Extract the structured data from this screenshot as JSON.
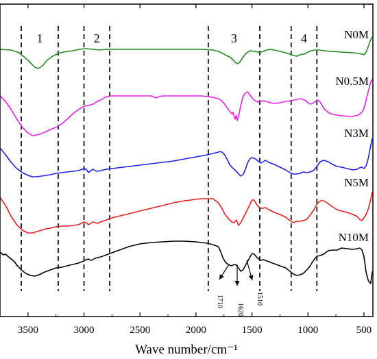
{
  "chart_data": {
    "type": "line",
    "xlabel": "Wave number/cm⁻¹",
    "ylabel": "",
    "xlim": [
      3750,
      420
    ],
    "x_reversed": true,
    "x_ticks": [
      3500,
      3000,
      2500,
      2000,
      1500,
      1000,
      500
    ],
    "x_tick_labels": [
      "3500",
      "3000",
      "2500",
      "2000",
      "1500",
      "1000",
      "500"
    ],
    "y_ticks_shown": false,
    "regions": [
      {
        "label": "1",
        "from": 3560,
        "to": 3230
      },
      {
        "label": "2",
        "from": 3000,
        "to": 2770
      },
      {
        "label": "3",
        "from": 1890,
        "to": 1430
      },
      {
        "label": "4",
        "from": 1150,
        "to": 920
      }
    ],
    "annotations": [
      {
        "label": "1710",
        "x": 1710
      },
      {
        "label": "1620",
        "x": 1620
      },
      {
        "label": "1510",
        "x": 1510
      }
    ],
    "series": [
      {
        "name": "N0M",
        "color": "#1e8c1e",
        "offset": 72,
        "x": [
          3750,
          3650,
          3580,
          3520,
          3470,
          3440,
          3410,
          3370,
          3330,
          3280,
          3230,
          3180,
          3100,
          3040,
          2980,
          2920,
          2860,
          2800,
          2700,
          2500,
          2300,
          2100,
          1950,
          1850,
          1800,
          1760,
          1730,
          1700,
          1670,
          1650,
          1630,
          1610,
          1590,
          1560,
          1530,
          1510,
          1480,
          1450,
          1420,
          1400,
          1370,
          1340,
          1300,
          1250,
          1200,
          1160,
          1130,
          1100,
          1070,
          1050,
          1030,
          1000,
          970,
          940,
          900,
          860,
          800,
          700,
          600,
          550,
          520,
          500,
          480,
          460,
          440,
          425
        ],
        "y": [
          0,
          -1,
          -5,
          -13,
          -21,
          -26,
          -28,
          -24,
          -16,
          -10,
          -6,
          -4,
          -2,
          0,
          1,
          0,
          -1,
          0,
          0,
          0,
          0,
          0,
          0,
          -1,
          -3,
          -6,
          -9,
          -11,
          -15,
          -19,
          -21,
          -19,
          -14,
          -7,
          -3,
          -2,
          -3,
          -4,
          -4,
          -3,
          -1,
          0,
          -1,
          -3,
          -5,
          -7,
          -9,
          -10,
          -8,
          -7,
          -7,
          -4,
          -2,
          -1,
          -1,
          -2,
          -3,
          -4,
          -5,
          -6,
          -7,
          -8,
          -4,
          5,
          14,
          18
        ]
      },
      {
        "name": "N0.5M",
        "color": "#e81ee8",
        "offset": 140,
        "x": [
          3750,
          3700,
          3650,
          3600,
          3550,
          3500,
          3460,
          3420,
          3380,
          3340,
          3300,
          3250,
          3200,
          3150,
          3100,
          3050,
          3000,
          2960,
          2920,
          2880,
          2850,
          2820,
          2800,
          2780,
          2760,
          2700,
          2600,
          2500,
          2400,
          2370,
          2350,
          2330,
          2300,
          2200,
          2100,
          2000,
          1950,
          1900,
          1850,
          1800,
          1780,
          1760,
          1740,
          1720,
          1700,
          1690,
          1680,
          1670,
          1660,
          1650,
          1640,
          1630,
          1620,
          1600,
          1580,
          1560,
          1540,
          1520,
          1500,
          1480,
          1460,
          1440,
          1400,
          1370,
          1340,
          1300,
          1250,
          1200,
          1150,
          1100,
          1060,
          1020,
          1000,
          980,
          960,
          940,
          920,
          900,
          880,
          860,
          820,
          780,
          700,
          600,
          550,
          520,
          500,
          480,
          460,
          440,
          425
        ],
        "y": [
          0,
          -8,
          -20,
          -34,
          -46,
          -54,
          -58,
          -57,
          -55,
          -52,
          -49,
          -46,
          -41,
          -34,
          -26,
          -20,
          -15,
          -14,
          -12,
          -8,
          -6,
          -3,
          -1,
          -1,
          0,
          0,
          0,
          0,
          0,
          -2,
          -3,
          -1,
          0,
          0,
          0,
          0,
          0,
          -1,
          -2,
          -4,
          -6,
          -9,
          -13,
          -18,
          -22,
          -24,
          -26,
          -24,
          -30,
          -34,
          -28,
          -36,
          -30,
          -14,
          -1,
          4,
          6,
          2,
          -3,
          -6,
          -8,
          -9,
          -7,
          -8,
          -10,
          -11,
          -10,
          -8,
          -7,
          -5,
          -4,
          -7,
          -10,
          -12,
          -11,
          -9,
          -6,
          -7,
          -12,
          -18,
          -24,
          -27,
          -29,
          -30,
          -28,
          -24,
          -18,
          -6,
          8,
          20,
          24
        ]
      },
      {
        "name": "N3M",
        "color": "#1e1ee6",
        "offset": 216,
        "x": [
          3750,
          3700,
          3650,
          3600,
          3550,
          3500,
          3460,
          3420,
          3380,
          3340,
          3300,
          3250,
          3200,
          3150,
          3100,
          3050,
          3000,
          2980,
          2960,
          2940,
          2920,
          2900,
          2880,
          2850,
          2800,
          2750,
          2700,
          2600,
          2500,
          2400,
          2300,
          2200,
          2100,
          2000,
          1900,
          1800,
          1780,
          1760,
          1740,
          1720,
          1700,
          1680,
          1660,
          1640,
          1620,
          1600,
          1580,
          1560,
          1540,
          1520,
          1500,
          1480,
          1460,
          1440,
          1420,
          1400,
          1380,
          1350,
          1300,
          1250,
          1200,
          1160,
          1130,
          1100,
          1070,
          1040,
          1010,
          980,
          950,
          920,
          890,
          860,
          820,
          780,
          740,
          700,
          650,
          600,
          560,
          540,
          520,
          500,
          480,
          460,
          440,
          425
        ],
        "y": [
          0,
          -10,
          -21,
          -30,
          -36,
          -40,
          -42,
          -42,
          -41,
          -40,
          -39,
          -37,
          -36,
          -35,
          -34,
          -33,
          -30,
          -31,
          -36,
          -33,
          -31,
          -33,
          -34,
          -33,
          -31,
          -30,
          -29,
          -27,
          -25,
          -23,
          -21,
          -19,
          -16,
          -13,
          -10,
          -6,
          -5,
          -7,
          -11,
          -17,
          -24,
          -28,
          -31,
          -34,
          -38,
          -41,
          -39,
          -32,
          -22,
          -16,
          -14,
          -15,
          -17,
          -20,
          -22,
          -20,
          -18,
          -21,
          -24,
          -28,
          -32,
          -36,
          -38,
          -38,
          -37,
          -35,
          -36,
          -35,
          -33,
          -27,
          -20,
          -18,
          -20,
          -24,
          -27,
          -28,
          -30,
          -32,
          -31,
          -29,
          -28,
          -30,
          -26,
          -14,
          3,
          14
        ]
      },
      {
        "name": "N5M",
        "color": "#e81e1e",
        "offset": 288,
        "x": [
          3750,
          3700,
          3650,
          3600,
          3550,
          3500,
          3460,
          3420,
          3380,
          3340,
          3300,
          3250,
          3200,
          3150,
          3100,
          3050,
          3000,
          2980,
          2960,
          2940,
          2920,
          2900,
          2880,
          2850,
          2800,
          2750,
          2700,
          2600,
          2500,
          2400,
          2300,
          2200,
          2100,
          2000,
          1950,
          1900,
          1850,
          1800,
          1780,
          1760,
          1740,
          1720,
          1700,
          1680,
          1660,
          1640,
          1620,
          1600,
          1580,
          1560,
          1540,
          1520,
          1500,
          1480,
          1460,
          1440,
          1420,
          1400,
          1380,
          1350,
          1300,
          1250,
          1200,
          1160,
          1130,
          1100,
          1070,
          1040,
          1010,
          980,
          950,
          920,
          890,
          860,
          820,
          780,
          740,
          700,
          650,
          600,
          560,
          540,
          520,
          500,
          480,
          460,
          440,
          425
        ],
        "y": [
          0,
          -12,
          -28,
          -40,
          -48,
          -52,
          -52,
          -50,
          -48,
          -46,
          -45,
          -43,
          -42,
          -42,
          -41,
          -40,
          -36,
          -37,
          -40,
          -38,
          -36,
          -37,
          -38,
          -36,
          -33,
          -30,
          -28,
          -24,
          -20,
          -16,
          -12,
          -8,
          -5,
          -3,
          -2,
          -2,
          -2,
          -8,
          -13,
          -19,
          -25,
          -29,
          -33,
          -36,
          -37,
          -33,
          -41,
          -37,
          -31,
          -24,
          -18,
          -11,
          -4,
          -4,
          -10,
          -14,
          -16,
          -16,
          -15,
          -18,
          -22,
          -25,
          -29,
          -34,
          -37,
          -35,
          -35,
          -34,
          -32,
          -26,
          -19,
          -10,
          -5,
          -5,
          -9,
          -14,
          -18,
          -20,
          -22,
          -25,
          -28,
          -32,
          -34,
          -30,
          -25,
          -16,
          -4,
          8
        ]
      },
      {
        "name": "N10M",
        "color": "#000000",
        "offset": 368,
        "x": [
          3750,
          3720,
          3700,
          3680,
          3650,
          3620,
          3600,
          3560,
          3520,
          3480,
          3440,
          3400,
          3350,
          3300,
          3250,
          3200,
          3150,
          3100,
          3050,
          3000,
          2980,
          2960,
          2940,
          2920,
          2900,
          2880,
          2850,
          2800,
          2750,
          2700,
          2600,
          2500,
          2400,
          2300,
          2200,
          2100,
          2000,
          1950,
          1900,
          1850,
          1800,
          1780,
          1760,
          1740,
          1720,
          1700,
          1680,
          1660,
          1640,
          1620,
          1600,
          1580,
          1560,
          1540,
          1520,
          1500,
          1480,
          1460,
          1440,
          1420,
          1400,
          1380,
          1350,
          1300,
          1250,
          1200,
          1160,
          1130,
          1100,
          1070,
          1040,
          1010,
          980,
          950,
          920,
          890,
          860,
          820,
          780,
          740,
          700,
          650,
          600,
          560,
          540,
          520,
          500,
          480,
          460,
          440,
          425
        ],
        "y": [
          0,
          -4,
          -3,
          -6,
          -10,
          -14,
          -19,
          -26,
          -31,
          -34,
          -35,
          -33,
          -29,
          -26,
          -23,
          -22,
          -20,
          -18,
          -16,
          -13,
          -11,
          -10,
          -12,
          -11,
          -9,
          -8,
          -7,
          -4,
          -1,
          2,
          8,
          12,
          14,
          15,
          16,
          16,
          15,
          14,
          13,
          11,
          8,
          1,
          -8,
          -14,
          -17,
          -19,
          -20,
          -18,
          -19,
          -23,
          -28,
          -26,
          -20,
          -14,
          -8,
          -2,
          -3,
          -7,
          -10,
          -12,
          -11,
          -12,
          -14,
          -17,
          -20,
          -23,
          -28,
          -32,
          -34,
          -33,
          -31,
          -26,
          -20,
          -12,
          -6,
          -5,
          -3,
          2,
          3,
          3,
          6,
          5,
          4,
          5,
          6,
          4,
          -6,
          -30,
          -42,
          -46,
          -28
        ]
      }
    ]
  }
}
